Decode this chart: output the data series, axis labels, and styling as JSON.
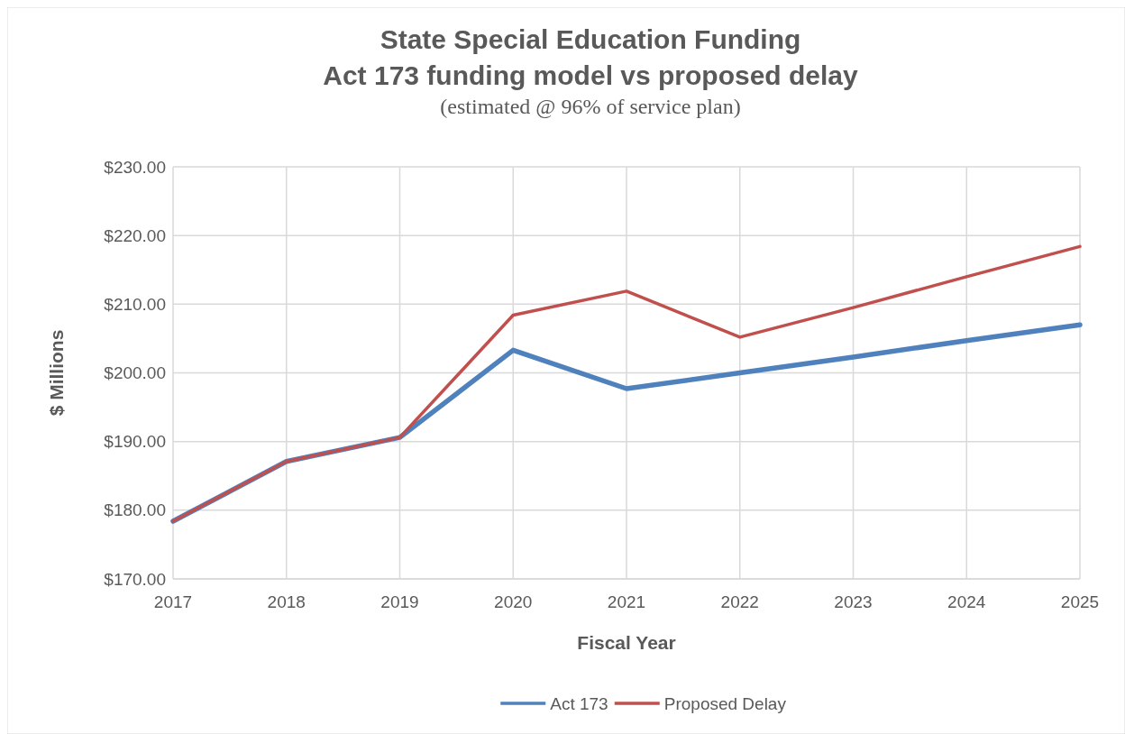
{
  "chart_data": {
    "type": "line",
    "title": "State Special Education Funding\nAct 173 funding model vs proposed delay",
    "subtitle": "(estimated @ 96% of service plan)",
    "xlabel": "Fiscal Year",
    "ylabel": "$ Millions",
    "x": [
      2017,
      2018,
      2019,
      2020,
      2021,
      2022,
      2023,
      2024,
      2025
    ],
    "series": [
      {
        "name": "Act 173",
        "color": "#4f81bd",
        "values": [
          178.4,
          187.1,
          190.6,
          203.3,
          197.7,
          200.0,
          202.3,
          204.7,
          207.0
        ]
      },
      {
        "name": "Proposed Delay",
        "color": "#c0504d",
        "values": [
          178.4,
          187.1,
          190.6,
          208.4,
          211.9,
          205.2,
          209.5,
          214.0,
          218.4
        ]
      }
    ],
    "xlim": [
      2017,
      2025
    ],
    "xticks": [
      2017,
      2018,
      2019,
      2020,
      2021,
      2022,
      2023,
      2024,
      2025
    ],
    "ylim": [
      170,
      230
    ],
    "yticks": [
      {
        "value": 170,
        "label": "$170.00"
      },
      {
        "value": 180,
        "label": "$180.00"
      },
      {
        "value": 190,
        "label": "$190.00"
      },
      {
        "value": 200,
        "label": "$200.00"
      },
      {
        "value": 210,
        "label": "$210.00"
      },
      {
        "value": 220,
        "label": "$220.00"
      },
      {
        "value": 230,
        "label": "$230.00"
      }
    ],
    "grid": true,
    "legend": "bottom",
    "marker": "none",
    "line_style": "solid"
  }
}
